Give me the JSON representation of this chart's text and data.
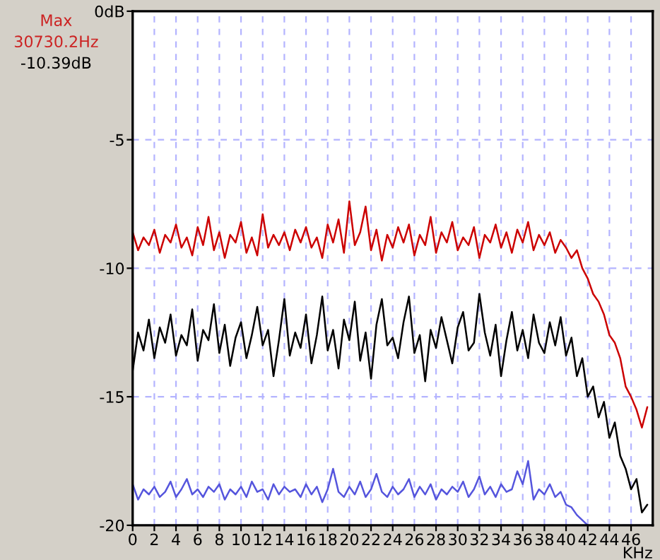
{
  "chart_data": {
    "type": "line",
    "xlabel": "KHz",
    "annotations": [
      "Max",
      "30730.2Hz",
      "-10.39dB"
    ],
    "x": [
      0,
      0.5,
      1,
      1.5,
      2,
      2.5,
      3,
      3.5,
      4,
      4.5,
      5,
      5.5,
      6,
      6.5,
      7,
      7.5,
      8,
      8.5,
      9,
      9.5,
      10,
      10.5,
      11,
      11.5,
      12,
      12.5,
      13,
      13.5,
      14,
      14.5,
      15,
      15.5,
      16,
      16.5,
      17,
      17.5,
      18,
      18.5,
      19,
      19.5,
      20,
      20.5,
      21,
      21.5,
      22,
      22.5,
      23,
      23.5,
      24,
      24.5,
      25,
      25.5,
      26,
      26.5,
      27,
      27.5,
      28,
      28.5,
      29,
      29.5,
      30,
      30.5,
      31,
      31.5,
      32,
      32.5,
      33,
      33.5,
      34,
      34.5,
      35,
      35.5,
      36,
      36.5,
      37,
      37.5,
      38,
      38.5,
      39,
      39.5,
      40,
      40.5,
      41,
      41.5,
      42,
      42.5,
      43,
      43.5,
      44,
      44.5,
      45,
      45.5,
      46,
      46.5,
      47,
      47.5
    ],
    "series": [
      {
        "color": "#cc0000",
        "values": [
          -8.6,
          -9.3,
          -8.8,
          -9.1,
          -8.5,
          -9.4,
          -8.7,
          -9.0,
          -8.3,
          -9.2,
          -8.8,
          -9.5,
          -8.4,
          -9.1,
          -8.0,
          -9.3,
          -8.6,
          -9.6,
          -8.7,
          -9.0,
          -8.2,
          -9.4,
          -8.8,
          -9.5,
          -7.9,
          -9.2,
          -8.7,
          -9.1,
          -8.6,
          -9.3,
          -8.5,
          -9.0,
          -8.4,
          -9.2,
          -8.8,
          -9.6,
          -8.3,
          -9.0,
          -8.1,
          -9.4,
          -7.4,
          -9.1,
          -8.6,
          -7.6,
          -9.3,
          -8.5,
          -9.7,
          -8.7,
          -9.2,
          -8.4,
          -9.0,
          -8.3,
          -9.5,
          -8.7,
          -9.1,
          -8.0,
          -9.4,
          -8.6,
          -9.0,
          -8.2,
          -9.3,
          -8.8,
          -9.1,
          -8.4,
          -9.6,
          -8.7,
          -9.0,
          -8.3,
          -9.2,
          -8.6,
          -9.4,
          -8.5,
          -9.0,
          -8.2,
          -9.3,
          -8.7,
          -9.1,
          -8.6,
          -9.4,
          -8.9,
          -9.2,
          -9.6,
          -9.3,
          -10.0,
          -10.4,
          -11.0,
          -11.3,
          -11.8,
          -12.6,
          -12.9,
          -13.5,
          -14.6,
          -15.0,
          -15.5,
          -16.2,
          -15.4
        ]
      },
      {
        "color": "#000000",
        "values": [
          -14.0,
          -12.5,
          -13.2,
          -12.0,
          -13.5,
          -12.3,
          -12.9,
          -11.8,
          -13.4,
          -12.6,
          -13.0,
          -11.6,
          -13.6,
          -12.4,
          -12.8,
          -11.4,
          -13.3,
          -12.2,
          -13.8,
          -12.7,
          -12.1,
          -13.5,
          -12.6,
          -11.5,
          -13.0,
          -12.4,
          -14.2,
          -12.8,
          -11.2,
          -13.4,
          -12.5,
          -13.1,
          -11.8,
          -13.7,
          -12.6,
          -11.1,
          -13.2,
          -12.4,
          -13.9,
          -12.0,
          -12.8,
          -11.3,
          -13.6,
          -12.5,
          -14.3,
          -12.2,
          -11.2,
          -13.0,
          -12.7,
          -13.5,
          -12.1,
          -11.1,
          -13.3,
          -12.6,
          -14.4,
          -12.4,
          -13.1,
          -11.9,
          -12.8,
          -13.7,
          -12.3,
          -11.7,
          -13.2,
          -12.9,
          -11.0,
          -12.5,
          -13.4,
          -12.2,
          -14.2,
          -12.8,
          -11.7,
          -13.2,
          -12.4,
          -13.5,
          -11.8,
          -12.9,
          -13.3,
          -12.1,
          -13.0,
          -11.9,
          -13.4,
          -12.7,
          -14.2,
          -13.5,
          -15.0,
          -14.6,
          -15.8,
          -15.2,
          -16.6,
          -16.0,
          -17.3,
          -17.8,
          -18.6,
          -18.2,
          -19.5,
          -19.2
        ]
      },
      {
        "color": "#5555dd",
        "values": [
          -18.4,
          -19.0,
          -18.6,
          -18.8,
          -18.5,
          -18.9,
          -18.7,
          -18.3,
          -18.9,
          -18.6,
          -18.2,
          -18.8,
          -18.6,
          -18.9,
          -18.5,
          -18.7,
          -18.4,
          -19.0,
          -18.6,
          -18.8,
          -18.5,
          -18.9,
          -18.3,
          -18.7,
          -18.6,
          -19.0,
          -18.4,
          -18.8,
          -18.5,
          -18.7,
          -18.6,
          -18.9,
          -18.4,
          -18.8,
          -18.5,
          -19.1,
          -18.6,
          -17.8,
          -18.7,
          -18.9,
          -18.5,
          -18.8,
          -18.3,
          -18.9,
          -18.6,
          -18.0,
          -18.7,
          -18.9,
          -18.5,
          -18.8,
          -18.6,
          -18.2,
          -18.9,
          -18.5,
          -18.8,
          -18.4,
          -19.0,
          -18.6,
          -18.8,
          -18.5,
          -18.7,
          -18.3,
          -18.9,
          -18.6,
          -18.1,
          -18.8,
          -18.5,
          -18.9,
          -18.4,
          -18.7,
          -18.6,
          -17.9,
          -18.4,
          -17.5,
          -19.0,
          -18.6,
          -18.8,
          -18.4,
          -18.9,
          -18.7,
          -19.2,
          -19.3,
          -19.6,
          -19.8,
          -20.0,
          null,
          null,
          null,
          null,
          null,
          null,
          null,
          null,
          null,
          null,
          null
        ]
      }
    ],
    "xlim": [
      0,
      48
    ],
    "xticks": [
      0,
      2,
      4,
      6,
      8,
      10,
      12,
      14,
      16,
      18,
      20,
      22,
      24,
      26,
      28,
      30,
      32,
      34,
      36,
      38,
      40,
      42,
      44,
      46
    ],
    "ylim": [
      -20,
      0
    ],
    "yticks": [
      {
        "value": 0,
        "label": "0dB"
      },
      -5,
      -10,
      -15,
      -20
    ],
    "grid": true,
    "legend": false,
    "marker": "none",
    "line_style": "solid"
  }
}
